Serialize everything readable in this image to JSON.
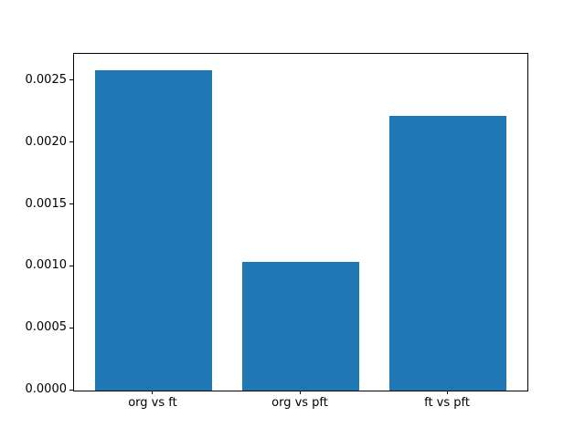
{
  "chart_data": {
    "type": "bar",
    "categories": [
      "org vs ft",
      "org vs pft",
      "ft vs pft"
    ],
    "values": [
      0.00259,
      0.00104,
      0.00222
    ],
    "title": "",
    "xlabel": "",
    "ylabel": "",
    "ylim": [
      0,
      0.00272
    ],
    "yticks": {
      "values": [
        0.0,
        0.0005,
        0.001,
        0.0015,
        0.002,
        0.0025
      ],
      "labels": [
        "0.0000",
        "0.0005",
        "0.0010",
        "0.0015",
        "0.0020",
        "0.0025"
      ]
    },
    "grid": false,
    "legend": null,
    "bar_color": "#1f77b4"
  },
  "colors": {
    "figure_background": "#ffffff",
    "axes_background": "#ffffff",
    "spine": "#000000",
    "tick_text": "#000000",
    "bar": "#1f77b4"
  }
}
